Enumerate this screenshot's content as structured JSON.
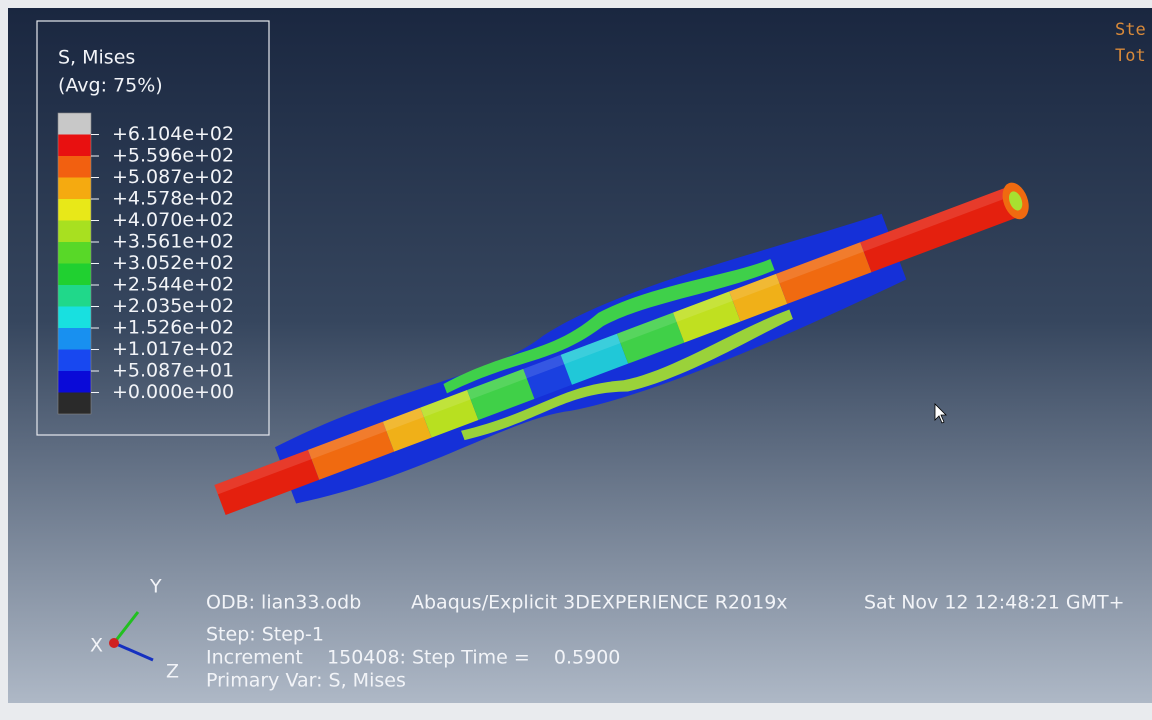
{
  "legend": {
    "title": "S, Mises",
    "subtitle": "(Avg: 75%)",
    "labels": [
      "+6.104e+02",
      "+5.596e+02",
      "+5.087e+02",
      "+4.578e+02",
      "+4.070e+02",
      "+3.561e+02",
      "+3.052e+02",
      "+2.544e+02",
      "+2.035e+02",
      "+1.526e+02",
      "+1.017e+02",
      "+5.087e+01",
      "+0.000e+00"
    ]
  },
  "info": {
    "odb": "ODB: lian33.odb",
    "solver": "Abaqus/Explicit 3DEXPERIENCE R2019x",
    "date": "Sat Nov 12 12:48:21 GMT+",
    "step": "Step: Step-1",
    "increment": "Increment    150408: Step Time =    0.5900",
    "primary_var": "Primary Var: S, Mises"
  },
  "triad": {
    "x": "X",
    "y": "Y",
    "z": "Z"
  },
  "corner": [
    "Ste",
    "Tot"
  ]
}
